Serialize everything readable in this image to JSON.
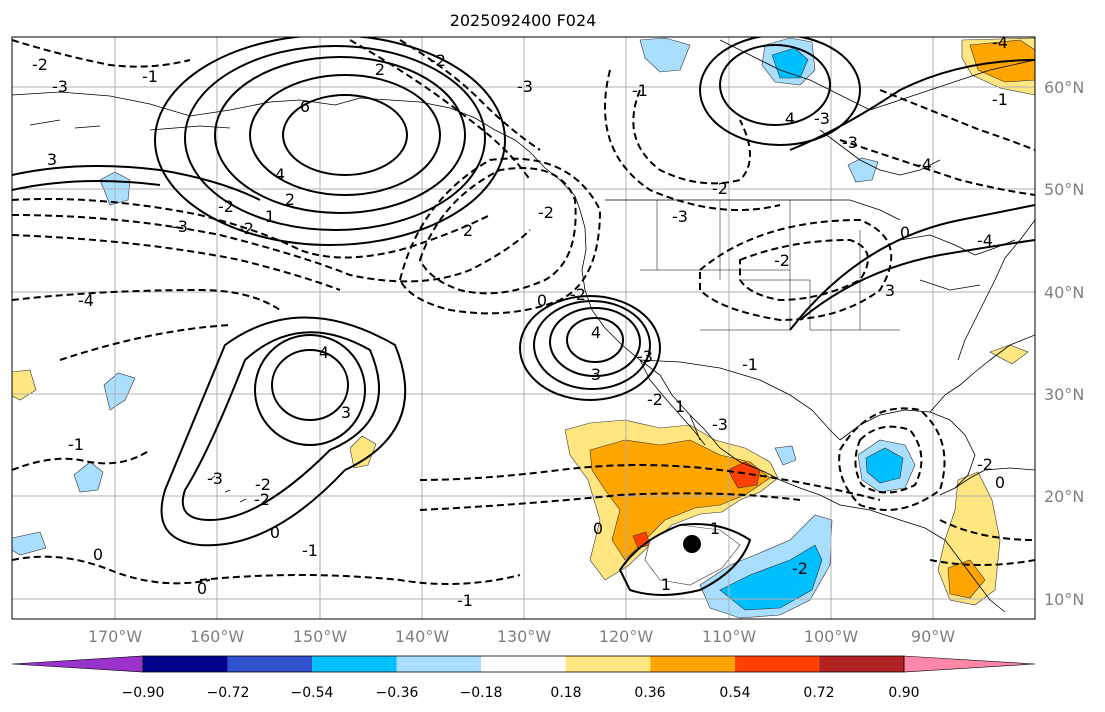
{
  "title": "2025092400 F024",
  "latitude_labels": [
    "60°N",
    "50°N",
    "40°N",
    "30°N",
    "20°N",
    "10°N"
  ],
  "longitude_labels": [
    "170°W",
    "160°W",
    "150°W",
    "140°W",
    "130°W",
    "120°W",
    "110°W",
    "100°W",
    "90°W"
  ],
  "colorbar": {
    "labels": [
      "−0.90",
      "−0.72",
      "−0.54",
      "−0.36",
      "−0.18",
      "0.18",
      "0.36",
      "0.54",
      "0.72",
      "0.90"
    ],
    "colors": [
      "#9933cc",
      "#00008b",
      "#3050cc",
      "#00bfff",
      "#aadeff",
      "#ffffff",
      "#ffe680",
      "#ffa500",
      "#ff4000",
      "#b22222",
      "#ff88aa"
    ]
  },
  "contour_labels": [
    "6",
    "4",
    "3",
    "2",
    "-1",
    "1",
    "-2",
    "2",
    "-3",
    "-4",
    "-3",
    "-2",
    "-1",
    "2",
    "-2",
    "-3",
    "-3",
    "-2",
    "-4",
    "4",
    "3",
    "-1",
    "-3",
    "-4",
    "-2",
    "4",
    "3",
    "-2",
    "-3",
    "-1",
    "1",
    "0",
    "-2",
    "-3",
    "3",
    "4",
    "-2",
    "-3",
    "-2",
    "0",
    "-1",
    "-1",
    "0",
    "-1",
    "0",
    "1",
    "-2",
    "0",
    "1",
    "-2",
    "-4",
    "0",
    "-3",
    "-2",
    "0",
    "-2"
  ],
  "marker": "black-dot"
}
